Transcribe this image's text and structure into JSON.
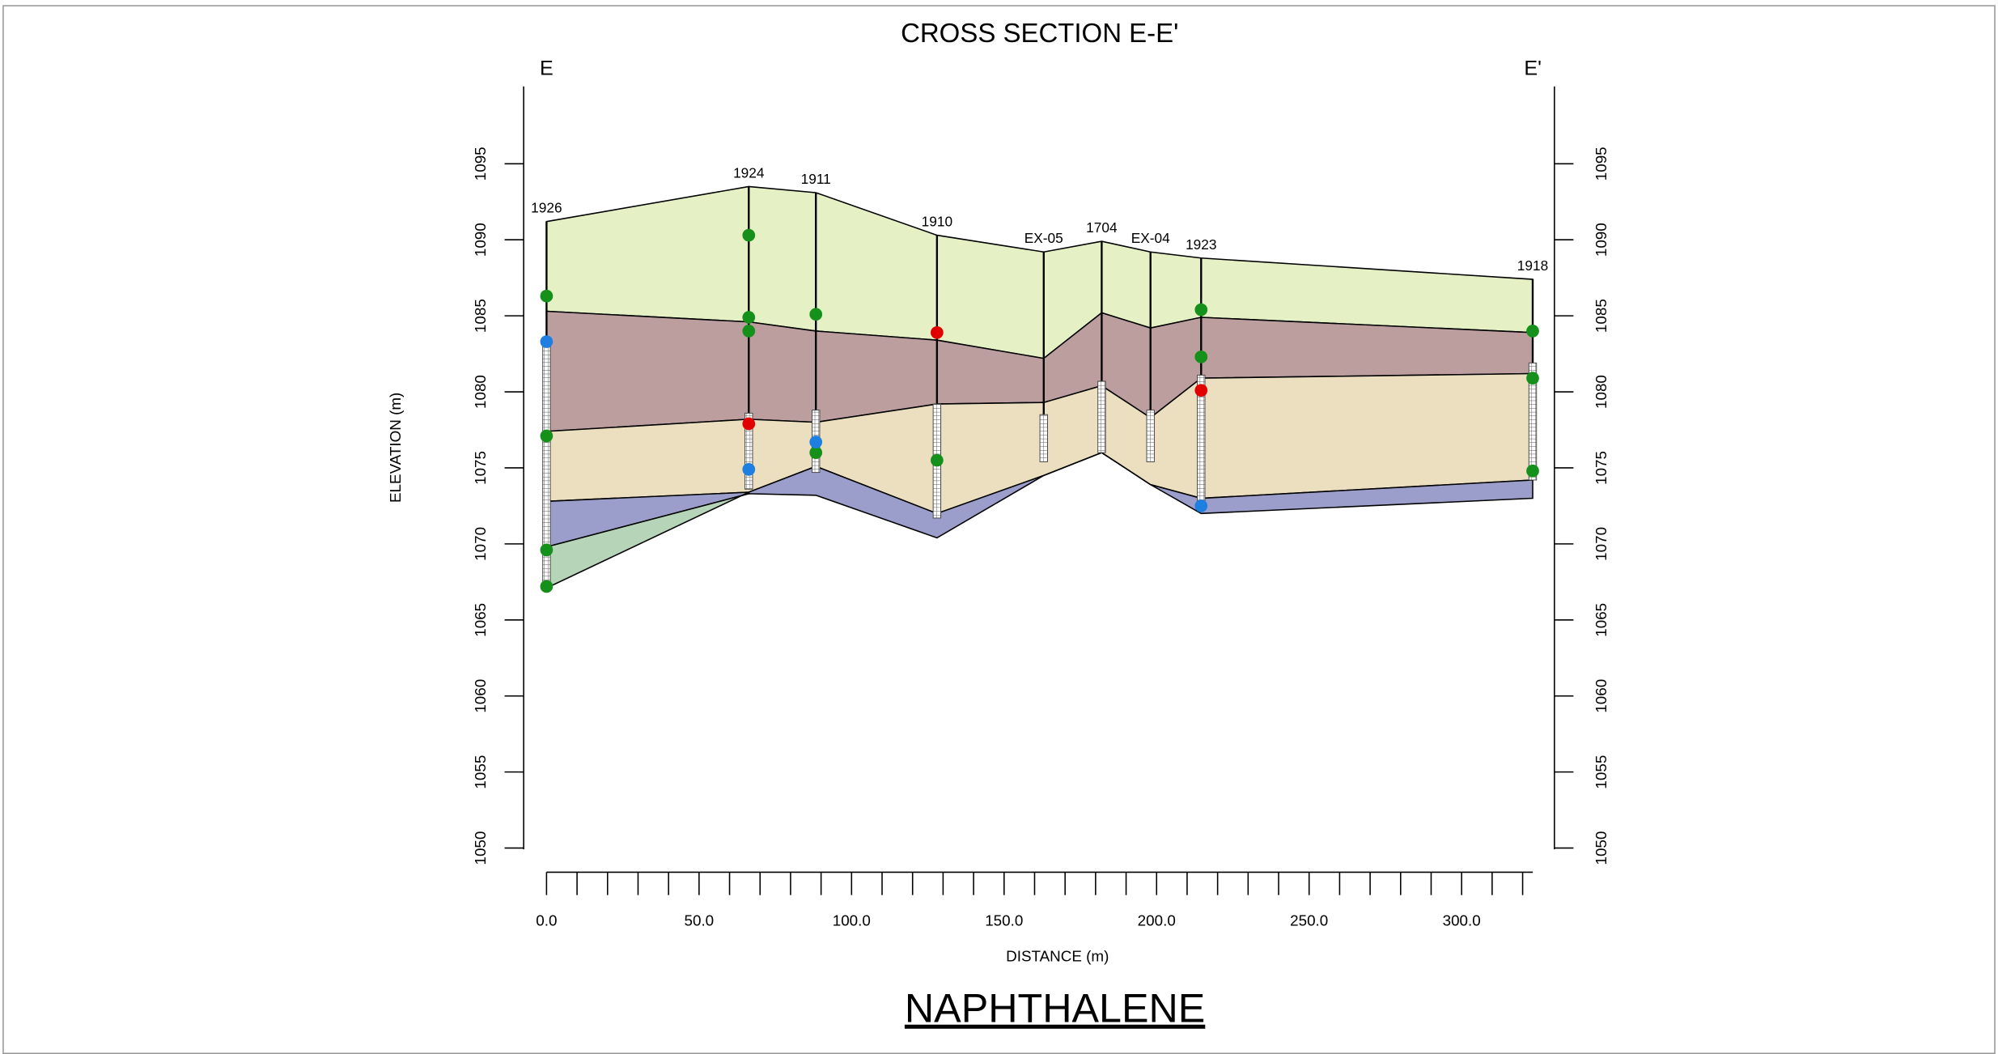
{
  "chart_data": {
    "type": "cross-section",
    "title": "CROSS SECTION E-E'",
    "subtitle": "NAPHTHALENE",
    "start_label": "E",
    "end_label": "E'",
    "y_label": "ELEVATION (m)",
    "x_label": "DISTANCE (m)",
    "ylim": [
      1050,
      1100
    ],
    "yticks": [
      1050,
      1055,
      1060,
      1065,
      1070,
      1075,
      1080,
      1085,
      1090,
      1095
    ],
    "xlim": [
      0,
      323.5
    ],
    "xticks": [
      {
        "value": 0,
        "label": "0.0"
      },
      {
        "value": 50,
        "label": "50.0"
      },
      {
        "value": 100,
        "label": "100.0"
      },
      {
        "value": 150,
        "label": "150.0"
      },
      {
        "value": 200,
        "label": "200.0"
      },
      {
        "value": 250,
        "label": "250.0"
      },
      {
        "value": 300,
        "label": "300.0"
      }
    ],
    "xminorticks": [
      10,
      20,
      30,
      40,
      60,
      70,
      80,
      90,
      110,
      120,
      130,
      140,
      160,
      170,
      180,
      190,
      210,
      220,
      230,
      240,
      260,
      270,
      280,
      290,
      310,
      320
    ],
    "wells": {
      "names": [
        "1926",
        "1924",
        "1911",
        "1910",
        "EX-05",
        "1704",
        "EX-04",
        "1923",
        "1918"
      ],
      "x": [
        0,
        66.3,
        88.3,
        128,
        163,
        182,
        198,
        214.6,
        323.3
      ],
      "top": [
        1091.2,
        1093.5,
        1093.1,
        1090.3,
        1089.2,
        1089.9,
        1089.2,
        1088.8,
        1087.4
      ],
      "screen_top": [
        1083,
        1078.6,
        1078.8,
        1079.2,
        1078.5,
        1080.7,
        1078.8,
        1081.1,
        1081.9
      ],
      "screen_bottom": [
        1067,
        1073.6,
        1074.7,
        1071.7,
        1075.4,
        1076,
        1075.4,
        1072.7,
        1074.2
      ]
    },
    "layers": [
      {
        "color": "#e5f0c4",
        "top": [
          1091.2,
          1093.5,
          1093.1,
          1090.3,
          1089.2,
          1089.9,
          1089.2,
          1088.8,
          1087.4
        ],
        "bottom": [
          1085.3,
          1084.6,
          1084.0,
          1083.4,
          1082.2,
          1085.2,
          1084.2,
          1084.9,
          1083.9
        ]
      },
      {
        "color": "#bd9e9e",
        "top": [
          1085.3,
          1084.6,
          1084.0,
          1083.4,
          1082.2,
          1085.2,
          1084.2,
          1084.9,
          1083.9
        ],
        "bottom": [
          1077.4,
          1078.2,
          1078.0,
          1079.2,
          1079.3,
          1080.4,
          1078.3,
          1080.9,
          1081.2
        ]
      },
      {
        "color": "#ebdfc0",
        "top": [
          1077.4,
          1078.2,
          1078.0,
          1079.2,
          1079.3,
          1080.4,
          1078.3,
          1080.9,
          1081.2
        ],
        "bottom": [
          1072.8,
          1073.4,
          1075.1,
          1072.0,
          1074.5,
          1076.0,
          1073.9,
          1073.0,
          1074.2
        ]
      },
      {
        "color": "#9b9ecb",
        "top": [
          1072.8,
          1073.4,
          1075.1,
          1072.0,
          1074.5,
          1076.0,
          1073.9,
          1073.0,
          1074.2
        ],
        "bottom": [
          1069.8,
          1073.3,
          1073.2,
          1070.4,
          1074.5,
          1076.0,
          1073.9,
          1072.0,
          1073.0
        ]
      },
      {
        "color": "#b5d4b8",
        "top": [
          1069.8,
          1073.3,
          null,
          null,
          null,
          null,
          null,
          null,
          null
        ],
        "bottom": [
          1067.1,
          1073.4,
          null,
          null,
          null,
          null,
          null,
          null,
          null
        ]
      }
    ],
    "series": [
      {
        "color": "#15901a",
        "x": [
          0,
          0,
          0,
          0,
          66.3,
          66.3,
          66.3,
          88.3,
          88.3,
          128,
          214.6,
          214.6,
          323.3,
          323.3,
          323.3
        ],
        "values": [
          1086.3,
          1077.1,
          1069.6,
          1067.2,
          1090.3,
          1084.9,
          1084.0,
          1085.1,
          1076.0,
          1075.5,
          1085.4,
          1082.3,
          1084.0,
          1080.9,
          1074.8
        ]
      },
      {
        "color": "#1e7fe0",
        "x": [
          0,
          66.3,
          88.3,
          214.6
        ],
        "values": [
          1083.3,
          1074.9,
          1076.7,
          1072.5
        ]
      },
      {
        "color": "#e00000",
        "x": [
          66.3,
          128,
          214.6
        ],
        "values": [
          1077.9,
          1083.9,
          1080.1
        ]
      }
    ]
  }
}
